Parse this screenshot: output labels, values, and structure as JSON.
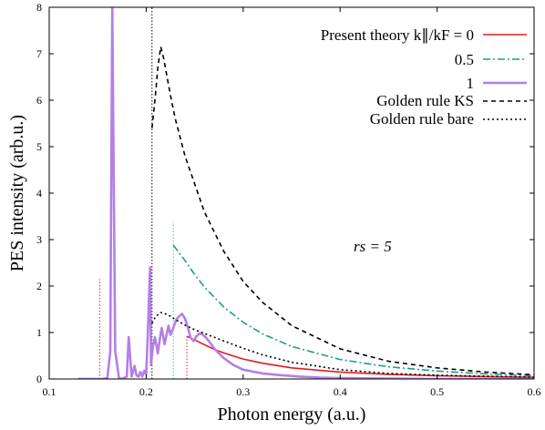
{
  "chart_data": {
    "type": "line",
    "title": "",
    "xlabel": "Photon energy (a.u.)",
    "ylabel": "PES intensity (arb.u.)",
    "xlim": [
      0.1,
      0.6
    ],
    "ylim": [
      0,
      8
    ],
    "xticks": [
      "0.1",
      "0.2",
      "0.3",
      "0.4",
      "0.5",
      "0.6"
    ],
    "yticks": [
      "0",
      "1",
      "2",
      "3",
      "4",
      "5",
      "6",
      "7",
      "8"
    ],
    "grid": false,
    "legend_position": "top-right",
    "legend_header": "Present theory k∥/kF = 0",
    "annotation": "rs = 5",
    "colors": {
      "red": "#e41a1c",
      "teal": "#19a08a",
      "purple": "#b57ee8",
      "black": "#000000",
      "green": "#52d452"
    },
    "series": [
      {
        "name": "0",
        "color": "#e41a1c",
        "style": "solid",
        "x": [
          0.242,
          0.25,
          0.26,
          0.27,
          0.28,
          0.3,
          0.32,
          0.35,
          0.4,
          0.45,
          0.5,
          0.55,
          0.6
        ],
        "y": [
          0.92,
          0.84,
          0.74,
          0.64,
          0.56,
          0.43,
          0.34,
          0.24,
          0.15,
          0.1,
          0.07,
          0.05,
          0.035
        ]
      },
      {
        "name": "0.5",
        "color": "#19a08a",
        "style": "dashdot",
        "x": [
          0.228,
          0.24,
          0.25,
          0.26,
          0.28,
          0.3,
          0.32,
          0.35,
          0.4,
          0.45,
          0.5,
          0.55,
          0.6
        ],
        "y": [
          2.88,
          2.55,
          2.25,
          1.98,
          1.55,
          1.22,
          0.97,
          0.7,
          0.42,
          0.26,
          0.17,
          0.11,
          0.07
        ]
      },
      {
        "name": "1",
        "color": "#b57ee8",
        "style": "solid-thick",
        "x": [
          0.13,
          0.155,
          0.16,
          0.163,
          0.165,
          0.168,
          0.172,
          0.175,
          0.18,
          0.182,
          0.185,
          0.188,
          0.19,
          0.192,
          0.194,
          0.196,
          0.198,
          0.2,
          0.202,
          0.204,
          0.205,
          0.207,
          0.209,
          0.212,
          0.214,
          0.216,
          0.219,
          0.221,
          0.223,
          0.225,
          0.228,
          0.231,
          0.234,
          0.237,
          0.24,
          0.243,
          0.246,
          0.249,
          0.252,
          0.255,
          0.258,
          0.262,
          0.266,
          0.27,
          0.275,
          0.28,
          0.29,
          0.3,
          0.32,
          0.34,
          0.36,
          0.38,
          0.4,
          0.45,
          0.5,
          0.6
        ],
        "y": [
          0.0,
          0.0,
          0.02,
          0.6,
          8.0,
          0.6,
          0.02,
          0.0,
          0.05,
          0.9,
          0.05,
          0.28,
          0.08,
          0.05,
          0.15,
          0.05,
          0.18,
          0.1,
          1.15,
          2.4,
          0.3,
          0.7,
          0.9,
          0.55,
          0.85,
          1.1,
          0.75,
          0.95,
          1.15,
          0.95,
          1.1,
          1.28,
          1.35,
          1.4,
          1.3,
          1.1,
          0.88,
          0.82,
          0.92,
          0.98,
          0.96,
          0.88,
          0.78,
          0.66,
          0.55,
          0.45,
          0.3,
          0.2,
          0.12,
          0.08,
          0.05,
          0.03,
          0.02,
          0.01,
          0.0,
          0.0
        ]
      },
      {
        "name": "Golden rule KS",
        "color": "#000000",
        "style": "dashed",
        "x": [
          0.206,
          0.209,
          0.212,
          0.215,
          0.218,
          0.222,
          0.226,
          0.23,
          0.24,
          0.25,
          0.26,
          0.28,
          0.3,
          0.32,
          0.35,
          0.4,
          0.45,
          0.5,
          0.55,
          0.6
        ],
        "y": [
          5.4,
          6.0,
          6.7,
          7.15,
          6.9,
          6.45,
          6.0,
          5.6,
          4.8,
          4.2,
          3.6,
          2.75,
          2.1,
          1.65,
          1.15,
          0.65,
          0.38,
          0.24,
          0.15,
          0.09
        ]
      },
      {
        "name": "Golden rule bare",
        "color": "#000000",
        "style": "dotted",
        "x": [
          0.206,
          0.21,
          0.215,
          0.22,
          0.225,
          0.23,
          0.24,
          0.25,
          0.26,
          0.28,
          0.3,
          0.32,
          0.35,
          0.4,
          0.45,
          0.5,
          0.55,
          0.6
        ],
        "y": [
          1.2,
          1.35,
          1.43,
          1.4,
          1.35,
          1.28,
          1.16,
          1.06,
          0.98,
          0.82,
          0.66,
          0.52,
          0.36,
          0.2,
          0.12,
          0.08,
          0.06,
          0.04
        ]
      }
    ],
    "markers": [
      {
        "x": 0.152,
        "top": 2.15,
        "color": "#e41a1c"
      },
      {
        "x": 0.206,
        "top": 8.0,
        "color": "#000000"
      },
      {
        "x": 0.228,
        "top": 3.38,
        "color": "#52d452"
      },
      {
        "x": 0.242,
        "top": 0.95,
        "color": "#e41a1c"
      }
    ]
  }
}
